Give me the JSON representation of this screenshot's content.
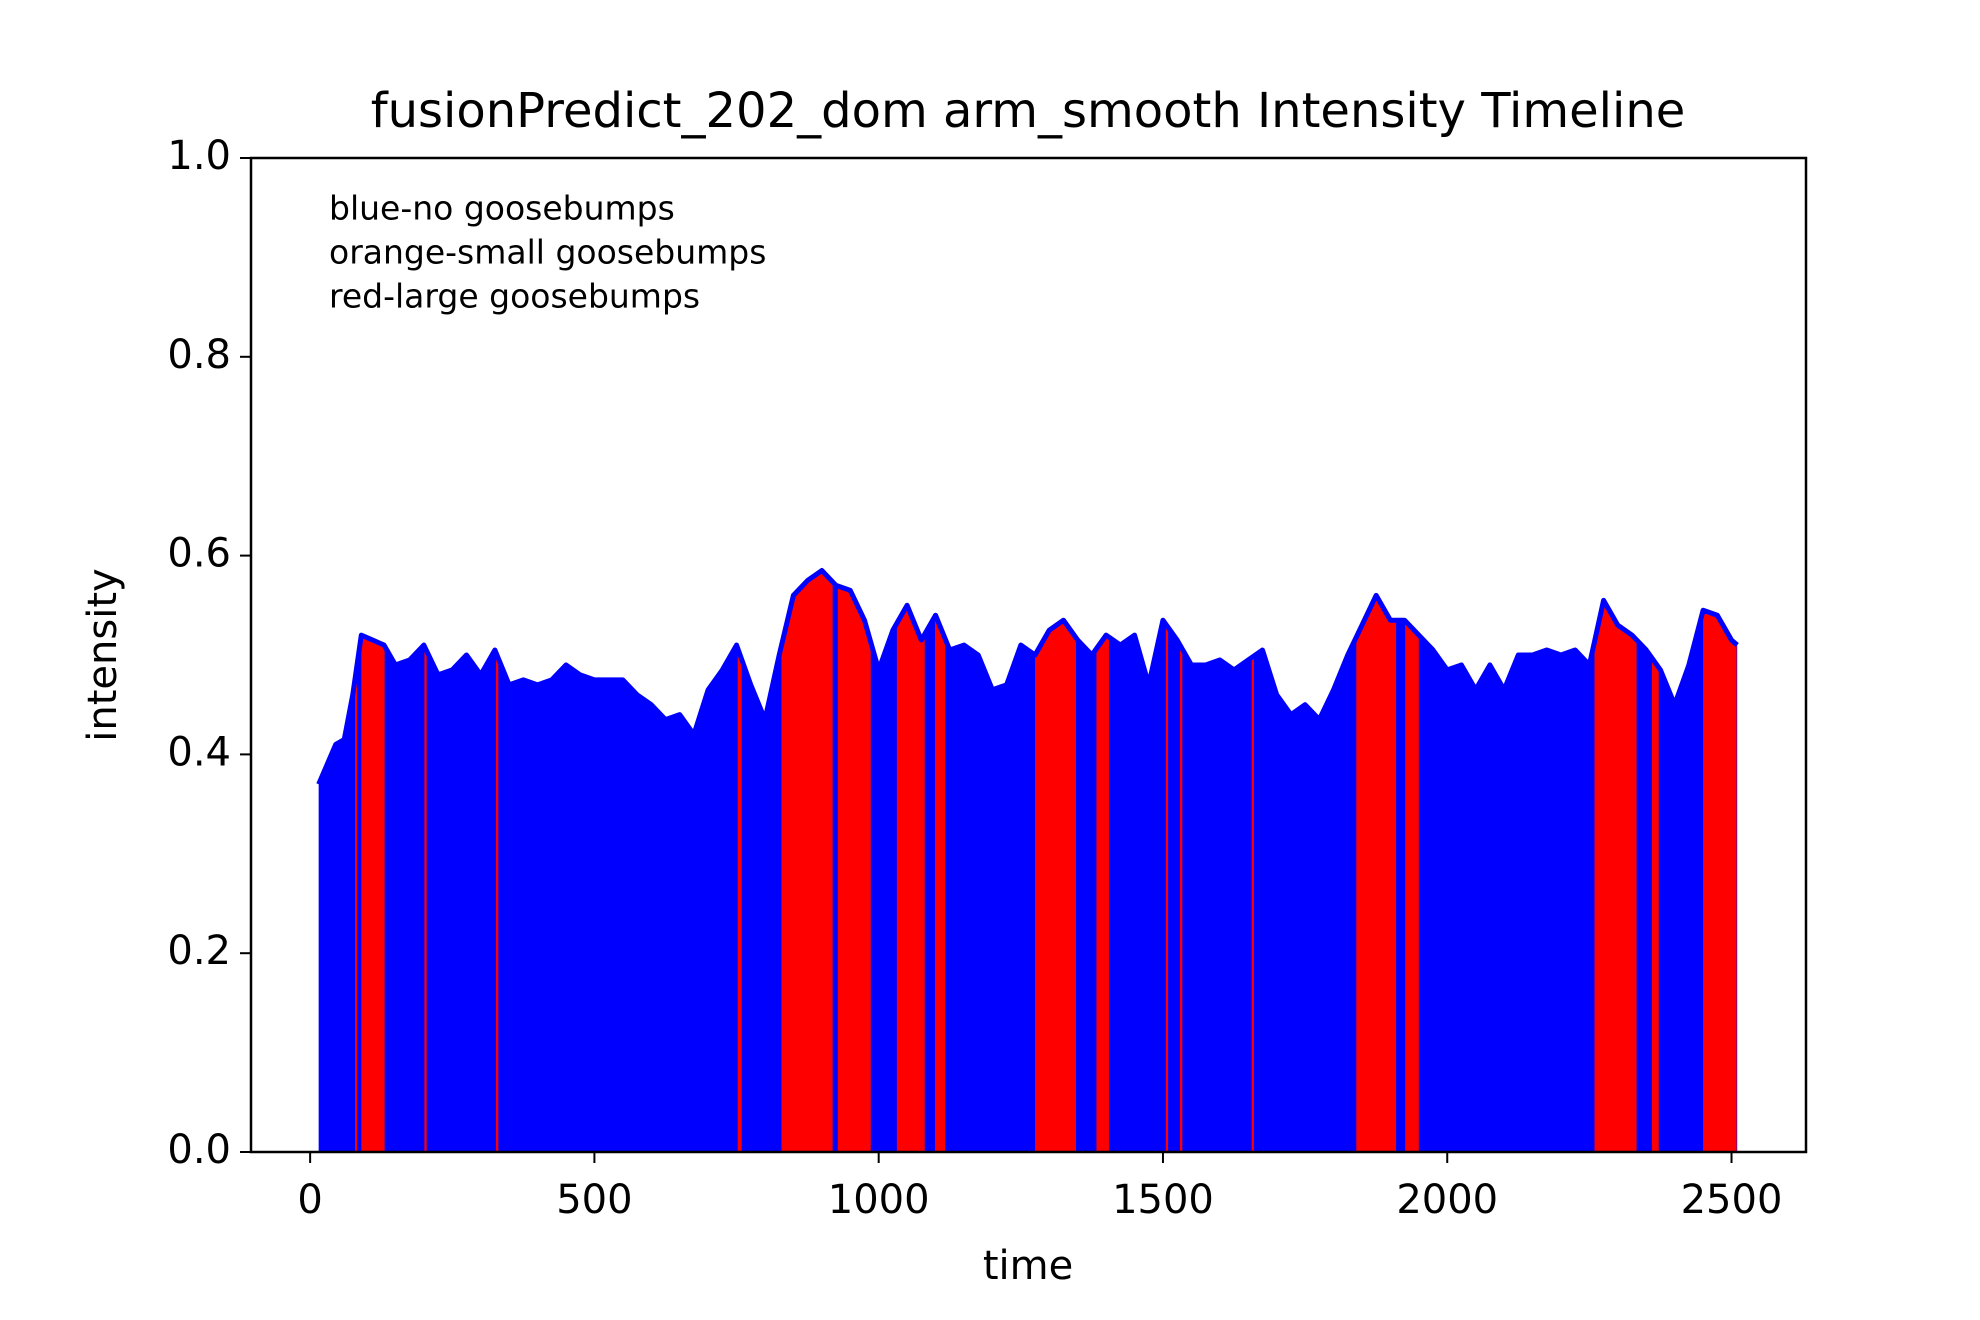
{
  "chart_data": {
    "type": "area",
    "title": "fusionPredict_202_dom arm_smooth Intensity Timeline",
    "xlabel": "time",
    "ylabel": "intensity",
    "annotations": [
      "blue-no goosebumps",
      "orange-small goosebumps",
      "red-large goosebumps"
    ],
    "color": "blue",
    "highlight_color": "red",
    "x": [
      15,
      30,
      45,
      60,
      75,
      90,
      110,
      130,
      150,
      175,
      200,
      225,
      250,
      275,
      300,
      325,
      350,
      375,
      400,
      425,
      450,
      475,
      500,
      525,
      550,
      575,
      600,
      625,
      650,
      675,
      700,
      725,
      750,
      775,
      800,
      825,
      850,
      875,
      900,
      925,
      950,
      975,
      1000,
      1025,
      1050,
      1075,
      1100,
      1125,
      1150,
      1175,
      1200,
      1225,
      1250,
      1275,
      1300,
      1325,
      1350,
      1375,
      1400,
      1425,
      1450,
      1475,
      1500,
      1525,
      1550,
      1575,
      1600,
      1625,
      1650,
      1675,
      1700,
      1725,
      1750,
      1775,
      1800,
      1825,
      1850,
      1875,
      1900,
      1925,
      1950,
      1975,
      2000,
      2025,
      2050,
      2075,
      2100,
      2125,
      2150,
      2175,
      2200,
      2225,
      2250,
      2275,
      2300,
      2325,
      2350,
      2375,
      2400,
      2425,
      2450,
      2475,
      2500,
      2510
    ],
    "values": [
      0.37,
      0.39,
      0.41,
      0.415,
      0.46,
      0.52,
      0.515,
      0.51,
      0.49,
      0.495,
      0.51,
      0.48,
      0.485,
      0.5,
      0.48,
      0.505,
      0.47,
      0.475,
      0.47,
      0.475,
      0.49,
      0.48,
      0.475,
      0.475,
      0.475,
      0.46,
      0.45,
      0.435,
      0.44,
      0.42,
      0.465,
      0.485,
      0.51,
      0.47,
      0.435,
      0.5,
      0.56,
      0.575,
      0.585,
      0.57,
      0.565,
      0.535,
      0.485,
      0.525,
      0.55,
      0.515,
      0.54,
      0.505,
      0.51,
      0.5,
      0.465,
      0.47,
      0.51,
      0.5,
      0.525,
      0.535,
      0.515,
      0.5,
      0.52,
      0.51,
      0.52,
      0.47,
      0.535,
      0.515,
      0.49,
      0.49,
      0.495,
      0.485,
      0.495,
      0.505,
      0.46,
      0.44,
      0.45,
      0.435,
      0.465,
      0.5,
      0.53,
      0.56,
      0.535,
      0.535,
      0.52,
      0.505,
      0.485,
      0.49,
      0.465,
      0.49,
      0.465,
      0.5,
      0.5,
      0.505,
      0.5,
      0.505,
      0.49,
      0.555,
      0.53,
      0.52,
      0.505,
      0.485,
      0.45,
      0.49,
      0.545,
      0.54,
      0.515,
      0.51
    ],
    "red_spans": [
      [
        79,
        82
      ],
      [
        90,
        131
      ],
      [
        201,
        205
      ],
      [
        327,
        331
      ],
      [
        752,
        759
      ],
      [
        829,
        919
      ],
      [
        928,
        986
      ],
      [
        1032,
        1081
      ],
      [
        1099,
        1117
      ],
      [
        1275,
        1347
      ],
      [
        1383,
        1405
      ],
      [
        1505,
        1509
      ],
      [
        1530,
        1534
      ],
      [
        1656,
        1660
      ],
      [
        1840,
        1910
      ],
      [
        1926,
        1950
      ],
      [
        2259,
        2333
      ],
      [
        2360,
        2372
      ],
      [
        2450,
        2509
      ]
    ],
    "xlim": [
      -104,
      2631
    ],
    "ylim": [
      0,
      1
    ],
    "xticks": [
      0,
      500,
      1000,
      1500,
      2000,
      2500
    ],
    "yticks": [
      {
        "value": 0,
        "label": "0.0"
      },
      0.2,
      0.4,
      0.6,
      0.8,
      {
        "value": 1,
        "label": "1.0"
      }
    ]
  }
}
